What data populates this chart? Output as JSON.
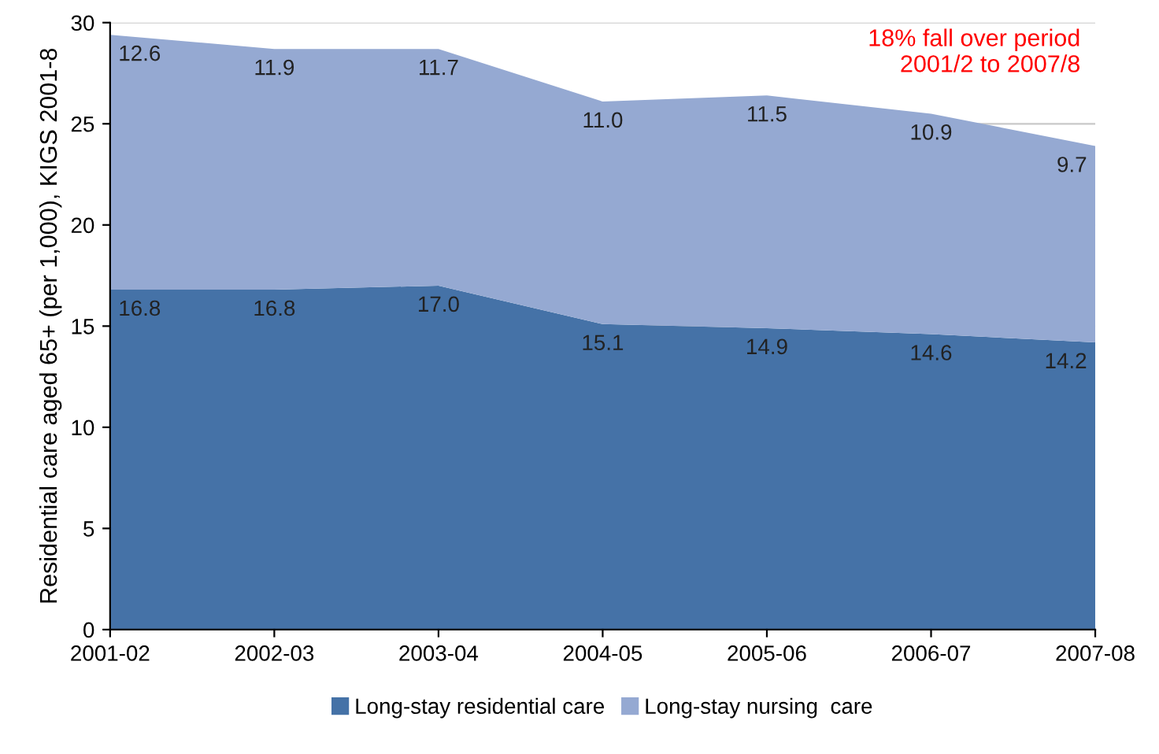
{
  "chart_data": {
    "type": "area",
    "stacked": true,
    "ylabel": "Residential care aged 65+ (per 1,000), KIGS 2001-8",
    "categories": [
      "2001-02",
      "2002-03",
      "2003-04",
      "2004-05",
      "2005-06",
      "2006-07",
      "2007-08"
    ],
    "series": [
      {
        "name": "Long-stay residential care",
        "color": "#4572a7",
        "values": [
          16.8,
          16.8,
          17.0,
          15.1,
          14.9,
          14.6,
          14.2
        ],
        "value_labels": [
          "16.8",
          "16.8",
          "17.0",
          "15.1",
          "14.9",
          "14.6",
          "14.2"
        ]
      },
      {
        "name": "Long-stay nursing  care",
        "color": "#95a9d2",
        "values": [
          12.6,
          11.9,
          11.7,
          11.0,
          11.5,
          10.9,
          9.7
        ],
        "value_labels": [
          "12.6",
          "11.9",
          "11.7",
          "11.0",
          "11.5",
          "10.9",
          "9.7"
        ]
      }
    ],
    "ylim": [
      0,
      30
    ],
    "yticks": [
      0,
      5,
      10,
      15,
      20,
      25,
      30
    ],
    "grid": "y",
    "legend": "bottom",
    "annotations": [
      "18% fall over period\n2001/2 to 2007/8"
    ]
  }
}
